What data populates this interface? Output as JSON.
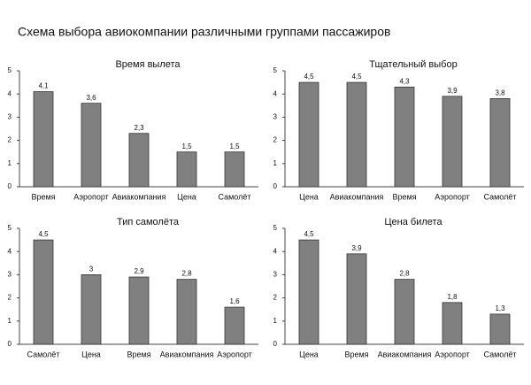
{
  "title": "Схема выбора авиокомпании различными группами пассажиров",
  "chart_data": [
    {
      "type": "bar",
      "title": "Время вылета",
      "categories": [
        "Время",
        "Аэропорт",
        "Авиакомпания",
        "Цена",
        "Самолёт"
      ],
      "values": [
        4.1,
        3.6,
        2.3,
        1.5,
        1.5
      ],
      "value_labels": [
        "4,1",
        "3,6",
        "2,3",
        "1,5",
        "1,5"
      ],
      "color": "#808080",
      "ylim": [
        0,
        5
      ],
      "yticks": [
        0,
        1,
        2,
        3,
        4,
        5
      ]
    },
    {
      "type": "bar",
      "title": "Тщательный выбор",
      "categories": [
        "Цена",
        "Авиакомпания",
        "Время",
        "Аэропорт",
        "Самолёт"
      ],
      "values": [
        4.5,
        4.5,
        4.3,
        3.9,
        3.8
      ],
      "value_labels": [
        "4,5",
        "4,5",
        "4,3",
        "3,9",
        "3,8"
      ],
      "color": "#808080",
      "ylim": [
        0,
        5
      ],
      "yticks": [
        0,
        1,
        2,
        3,
        4,
        5
      ]
    },
    {
      "type": "bar",
      "title": "Тип самолёта",
      "categories": [
        "Самолёт",
        "Цена",
        "Время",
        "Авиакомпания",
        "Аэропорт"
      ],
      "values": [
        4.5,
        3,
        2.9,
        2.8,
        1.6
      ],
      "value_labels": [
        "4,5",
        "3",
        "2,9",
        "2,8",
        "1,6"
      ],
      "color": "#808080",
      "ylim": [
        0,
        5
      ],
      "yticks": [
        0,
        1,
        2,
        3,
        4,
        5
      ]
    },
    {
      "type": "bar",
      "title": "Цена билета",
      "categories": [
        "Цена",
        "Время",
        "Авиакомпания",
        "Аэропорт",
        "Самолёт"
      ],
      "values": [
        4.5,
        3.9,
        2.8,
        1.8,
        1.3
      ],
      "value_labels": [
        "4,5",
        "3,9",
        "2,8",
        "1,8",
        "1,3"
      ],
      "color": "#808080",
      "ylim": [
        0,
        5
      ],
      "yticks": [
        0,
        1,
        2,
        3,
        4,
        5
      ]
    }
  ]
}
